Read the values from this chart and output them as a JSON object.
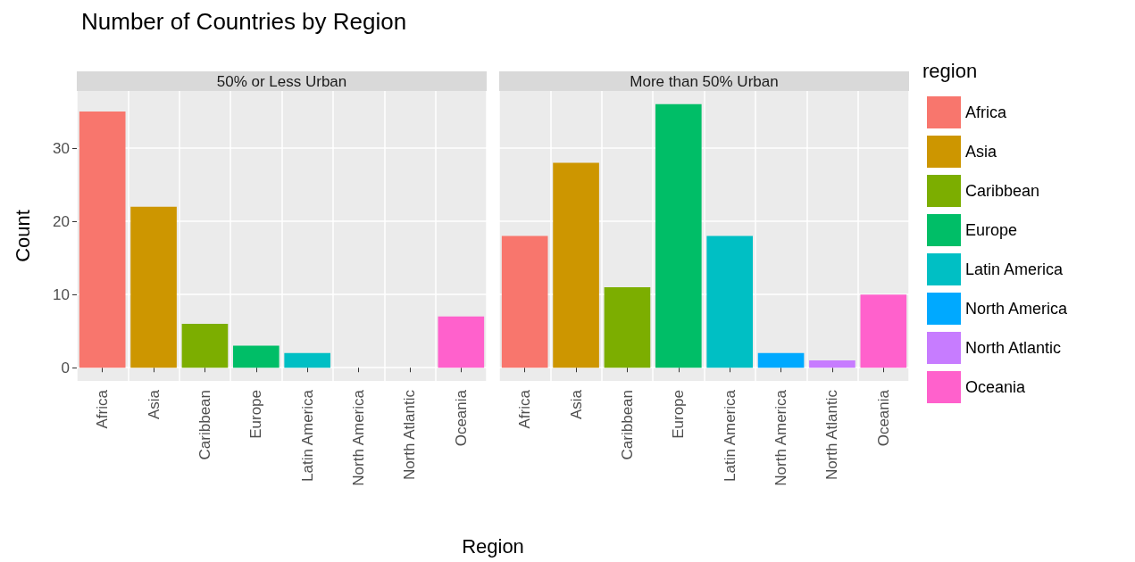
{
  "chart_data": [
    {
      "type": "bar",
      "title": "Number of Countries by Region",
      "subtitle": "50% or Less Urban",
      "ylabel": "Count",
      "categories": [
        "Africa",
        "Asia",
        "Caribbean",
        "Europe",
        "Latin America",
        "North America",
        "North Atlantic",
        "Oceania"
      ],
      "series": [
        {
          "color": "#f8766d",
          "values": [
            35,
            null,
            null,
            null,
            null,
            null,
            null,
            null
          ]
        },
        {
          "color": "#cd9600",
          "values": [
            null,
            22,
            null,
            null,
            null,
            null,
            null,
            null
          ]
        },
        {
          "color": "#7cae00",
          "values": [
            null,
            null,
            6,
            null,
            null,
            null,
            null,
            null
          ]
        },
        {
          "color": "#00be67",
          "values": [
            null,
            null,
            null,
            3,
            null,
            null,
            null,
            null
          ]
        },
        {
          "color": "#00bfc4",
          "values": [
            null,
            null,
            null,
            null,
            2,
            null,
            null,
            null
          ]
        },
        {
          "color": "#00a9ff",
          "values": [
            null,
            null,
            null,
            null,
            null,
            null,
            null,
            null
          ]
        },
        {
          "color": "#c77cff",
          "values": [
            null,
            null,
            null,
            null,
            null,
            null,
            null,
            null
          ]
        },
        {
          "color": "#ff61cc",
          "values": [
            null,
            null,
            null,
            null,
            null,
            null,
            null,
            7
          ]
        }
      ],
      "ylim": [
        -1.8,
        37.8
      ],
      "yticks": [
        0,
        10,
        20,
        30
      ],
      "grid": true,
      "legend": false
    },
    {
      "type": "bar",
      "subtitle": "More than 50% Urban",
      "xlabel": "Region",
      "legend_title": "region",
      "categories": [
        "Africa",
        "Asia",
        "Caribbean",
        "Europe",
        "Latin America",
        "North America",
        "North Atlantic",
        "Oceania"
      ],
      "series": [
        {
          "name": "Africa",
          "color": "#f8766d",
          "values": [
            18,
            null,
            null,
            null,
            null,
            null,
            null,
            null
          ]
        },
        {
          "name": "Asia",
          "color": "#cd9600",
          "values": [
            null,
            28,
            null,
            null,
            null,
            null,
            null,
            null
          ]
        },
        {
          "name": "Caribbean",
          "color": "#7cae00",
          "values": [
            null,
            null,
            11,
            null,
            null,
            null,
            null,
            null
          ]
        },
        {
          "name": "Europe",
          "color": "#00be67",
          "values": [
            null,
            null,
            null,
            36,
            null,
            null,
            null,
            null
          ]
        },
        {
          "name": "Latin America",
          "color": "#00bfc4",
          "values": [
            null,
            null,
            null,
            null,
            18,
            null,
            null,
            null
          ]
        },
        {
          "name": "North America",
          "color": "#00a9ff",
          "values": [
            null,
            null,
            null,
            null,
            null,
            2,
            null,
            null
          ]
        },
        {
          "name": "North Atlantic",
          "color": "#c77cff",
          "values": [
            null,
            null,
            null,
            null,
            null,
            null,
            1,
            null
          ]
        },
        {
          "name": "Oceania",
          "color": "#ff61cc",
          "values": [
            null,
            null,
            null,
            null,
            null,
            null,
            null,
            10
          ]
        }
      ],
      "ylim": [
        -1.8,
        37.8
      ],
      "yticks": [
        0,
        10,
        20,
        30
      ],
      "grid": true,
      "legend": "right",
      "tick_labels": "x"
    }
  ]
}
